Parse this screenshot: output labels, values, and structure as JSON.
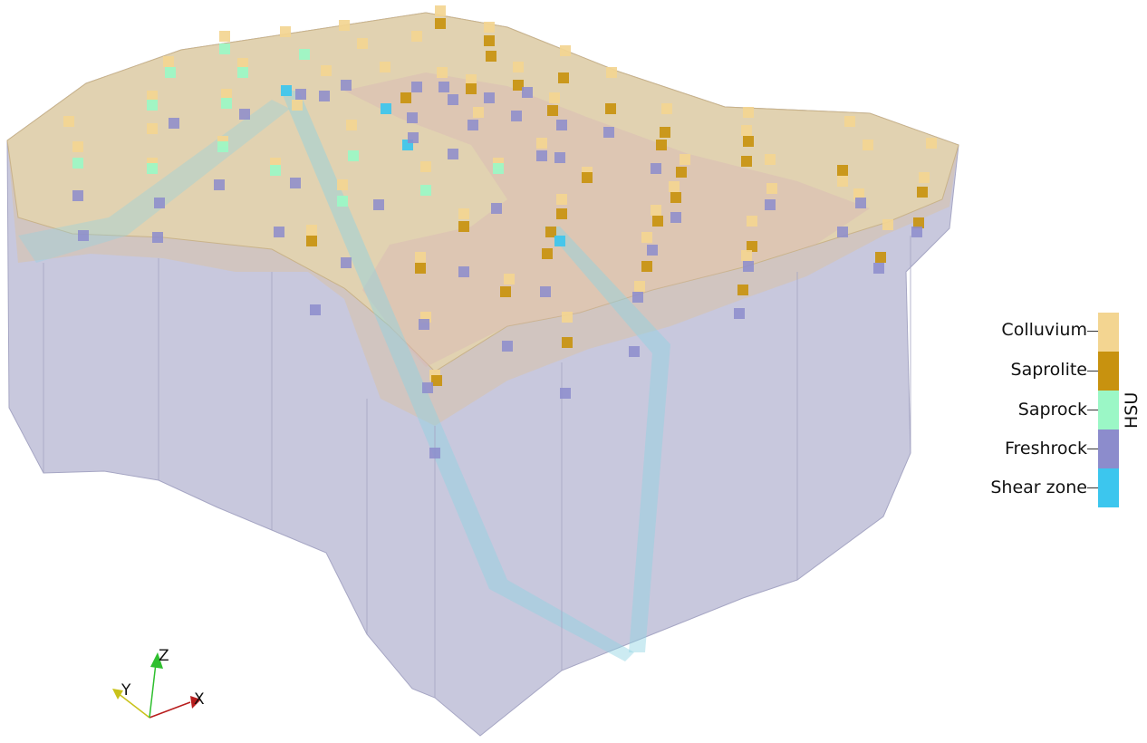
{
  "legend": {
    "title": "HSU",
    "items": [
      {
        "label": "Colluvium",
        "color": "#F3D591"
      },
      {
        "label": "Saprolite",
        "color": "#C8920F"
      },
      {
        "label": "Saprock",
        "color": "#9BF7C6"
      },
      {
        "label": "Freshrock",
        "color": "#8C8CCC"
      },
      {
        "label": "Shear zone",
        "color": "#3CC6EE"
      }
    ]
  },
  "axes": {
    "x": "X",
    "y": "Y",
    "z": "Z"
  },
  "colors": {
    "block_fill": "#B4B4D0",
    "surface": "#E6D7B4",
    "shear_band": "#9CD9E6",
    "axis_x": "#B81D1D",
    "axis_y": "#C9C21A",
    "axis_z": "#2FBF2F"
  }
}
